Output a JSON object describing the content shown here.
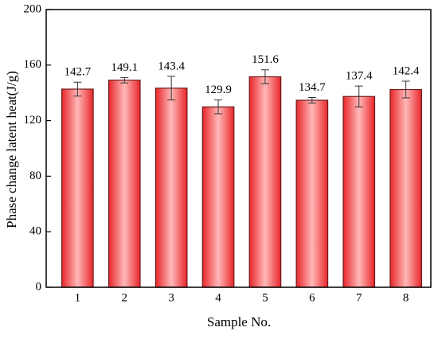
{
  "chart_data": {
    "type": "bar",
    "x_label": "Sample No.",
    "y_label": "Phase change latent heat(J/g)",
    "categories": [
      "1",
      "2",
      "3",
      "4",
      "5",
      "6",
      "7",
      "8"
    ],
    "values": [
      142.7,
      149.1,
      143.4,
      129.9,
      151.6,
      134.7,
      137.4,
      142.4
    ],
    "errors": [
      5,
      2,
      8.5,
      5,
      5,
      2,
      7.5,
      6
    ],
    "color": "#e8262a",
    "ylim": [
      0,
      200
    ],
    "yticks": [
      0,
      40,
      80,
      120,
      160,
      200
    ]
  }
}
